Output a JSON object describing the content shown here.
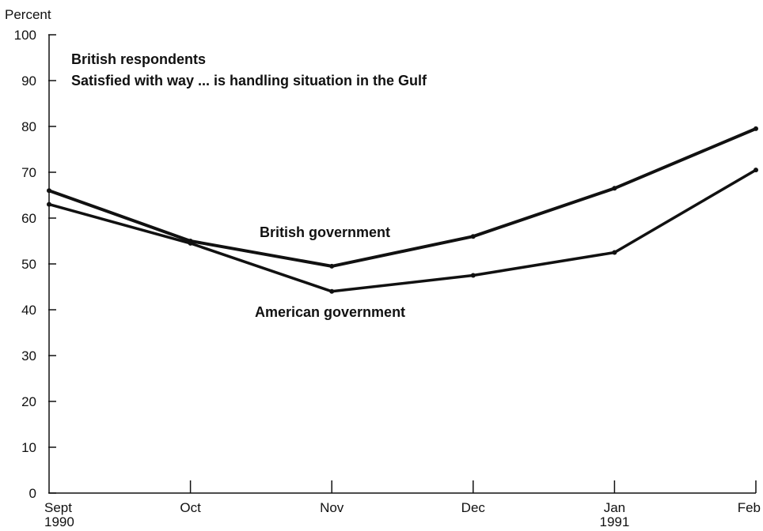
{
  "chart_data": {
    "type": "line",
    "title": "British respondents",
    "subtitle": "Satisfied with way ... is handling situation in the Gulf",
    "ylabel": "Percent",
    "xlabel": "",
    "ylim": [
      0,
      100
    ],
    "yticks": [
      0,
      10,
      20,
      30,
      40,
      50,
      60,
      70,
      80,
      90,
      100
    ],
    "categories": [
      "Sept",
      "Oct",
      "Nov",
      "Dec",
      "Jan",
      "Feb"
    ],
    "category_sublabels": [
      "1990",
      "",
      "",
      "",
      "1991",
      ""
    ],
    "grid": false,
    "series": [
      {
        "name": "British government",
        "values": [
          66,
          55,
          49.5,
          56,
          66.5,
          79.5
        ]
      },
      {
        "name": "American government",
        "values": [
          63,
          54.5,
          44,
          47.5,
          52.5,
          70.5
        ]
      }
    ],
    "colors": {
      "line": "#111111",
      "axis": "#111111",
      "background": "#ffffff"
    }
  }
}
